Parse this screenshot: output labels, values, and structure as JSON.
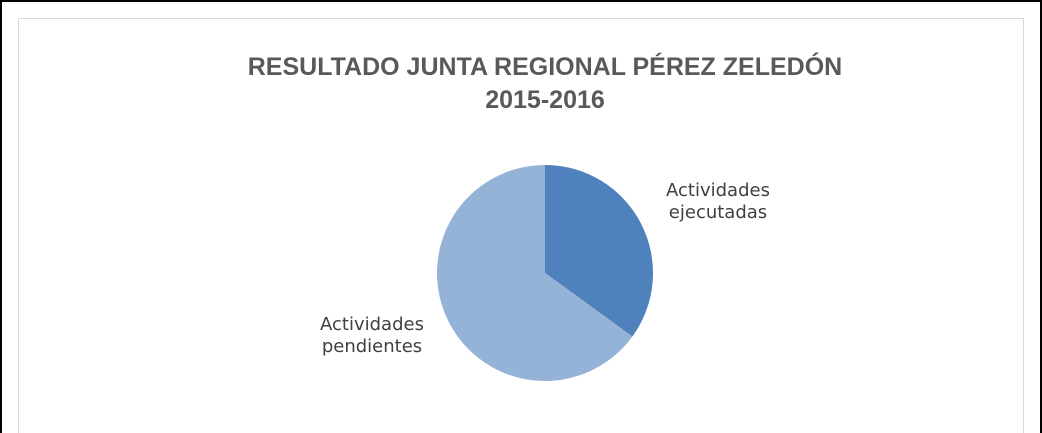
{
  "chart_data": {
    "type": "pie",
    "title": [
      "RESULTADO JUNTA REGIONAL PÉREZ ZELEDÓN",
      "2015-2016"
    ],
    "categories": [
      "Actividades ejecutadas",
      "Actividades pendientes"
    ],
    "values": [
      35,
      65
    ],
    "colors": [
      "#4f81bd",
      "#95b3d7"
    ]
  }
}
